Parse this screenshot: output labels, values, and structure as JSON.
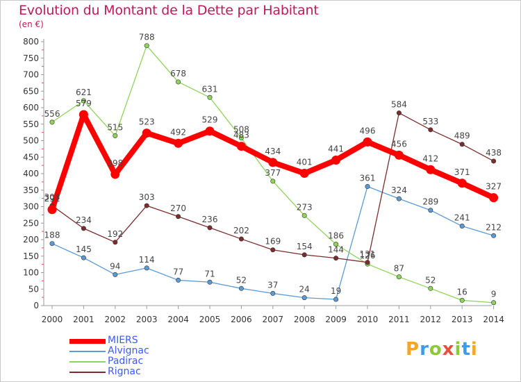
{
  "title": "Evolution du Montant de la Dette par Habitant",
  "subtitle": "(en €)",
  "chart_data": {
    "type": "line",
    "title": "Evolution du Montant de la Dette par Habitant",
    "subtitle": "(en €)",
    "x": [
      "2000",
      "2001",
      "2002",
      "2003",
      "2004",
      "2005",
      "2006",
      "2007",
      "2008",
      "2009",
      "2010",
      "2011",
      "2012",
      "2013",
      "2014"
    ],
    "yticks": [
      "0",
      "50",
      "100",
      "150",
      "200",
      "250",
      "300",
      "350",
      "400",
      "450",
      "500",
      "550",
      "600",
      "650",
      "700",
      "750",
      "800"
    ],
    "ylim": [
      0,
      800
    ],
    "grid": false,
    "legend_position": "bottom-left",
    "series": [
      {
        "name": "MIERS",
        "color": "#ff0000",
        "values": [
          291,
          579,
          398,
          523,
          492,
          529,
          483,
          434,
          401,
          441,
          496,
          456,
          412,
          371,
          327
        ],
        "labels": [
          "291",
          "579",
          "398",
          "523",
          "492",
          "529",
          "483",
          "434",
          "401",
          "441",
          "496",
          "456",
          "412",
          "371",
          "327"
        ]
      },
      {
        "name": "Alvignac",
        "color": "#5b9bd5",
        "values": [
          188,
          145,
          94,
          114,
          77,
          71,
          52,
          37,
          24,
          19,
          361,
          324,
          289,
          241,
          212
        ],
        "labels": [
          "188",
          "145",
          "94",
          "114",
          "77",
          "71",
          "52",
          "37",
          "24",
          "19",
          "361",
          "324",
          "289",
          "241",
          "212"
        ]
      },
      {
        "name": "Padirac",
        "color": "#8fd35a",
        "values": [
          556,
          621,
          515,
          788,
          678,
          631,
          508,
          377,
          273,
          186,
          126,
          87,
          52,
          16,
          9
        ],
        "labels": [
          "556",
          "621",
          "515",
          "788",
          "678",
          "631",
          "508",
          "377",
          "273",
          "186",
          "126",
          "87",
          "52",
          "16",
          "9"
        ]
      },
      {
        "name": "Rignac",
        "color": "#7b2c2c",
        "values": [
          303,
          234,
          192,
          303,
          270,
          236,
          202,
          169,
          154,
          144,
          131,
          584,
          533,
          489,
          438
        ],
        "labels": [
          "303",
          "234",
          "192",
          "303",
          "270",
          "236",
          "202",
          "169",
          "154",
          "144",
          "131",
          "584",
          "533",
          "489",
          "438"
        ]
      }
    ]
  },
  "legend": [
    {
      "label": "MIERS",
      "color": "#ff0000"
    },
    {
      "label": "Alvignac",
      "color": "#5b9bd5"
    },
    {
      "label": "Padirac",
      "color": "#8fd35a"
    },
    {
      "label": "Rignac",
      "color": "#7b2c2c"
    }
  ],
  "logo": {
    "text": "Proxiti",
    "letters": [
      "P",
      "r",
      "o",
      "x",
      "i",
      "t",
      "i"
    ],
    "colors": [
      "#f5a623",
      "#3d9be9",
      "#8fc93a",
      "#e94e3d",
      "#8fc93a",
      "#3d9be9",
      "#f5a623"
    ]
  }
}
